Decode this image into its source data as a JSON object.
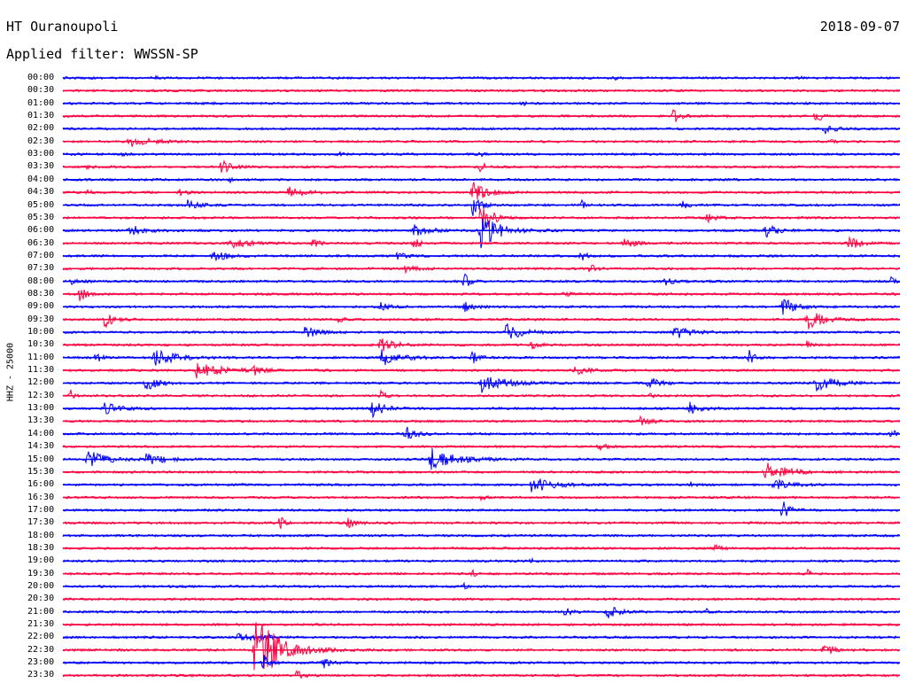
{
  "header": {
    "station": "HT Ouranoupoli",
    "date": "2018-09-07",
    "filter": "Applied filter: WWSSN-SP"
  },
  "chart_data": {
    "type": "line",
    "title": "HT Ouranoupoli",
    "ylabel": "HHZ - 25000",
    "row_labels": [
      "00:00",
      "00:30",
      "01:00",
      "01:30",
      "02:00",
      "02:30",
      "03:00",
      "03:30",
      "04:00",
      "04:30",
      "05:00",
      "05:30",
      "06:00",
      "06:30",
      "07:00",
      "07:30",
      "08:00",
      "08:30",
      "09:00",
      "09:30",
      "10:00",
      "10:30",
      "11:00",
      "11:30",
      "12:00",
      "12:30",
      "13:00",
      "13:30",
      "14:00",
      "14:30",
      "15:00",
      "15:30",
      "16:00",
      "16:30",
      "17:00",
      "17:30",
      "18:00",
      "18:30",
      "19:00",
      "19:30",
      "20:00",
      "20:30",
      "21:00",
      "21:30",
      "22:00",
      "22:30",
      "23:00",
      "23:30"
    ],
    "trace_colors": [
      "#0000ff",
      "#ff0040"
    ],
    "grid": false,
    "events": [
      [
        0,
        0.11,
        3,
        2
      ],
      [
        0,
        0.66,
        2,
        1.6
      ],
      [
        0,
        0.88,
        2,
        1.6
      ],
      [
        1,
        0.57,
        3,
        1
      ],
      [
        2,
        0.55,
        4,
        2
      ],
      [
        3,
        0.73,
        6,
        8
      ],
      [
        3,
        0.9,
        5,
        9
      ],
      [
        4,
        0.91,
        10,
        5
      ],
      [
        5,
        0.08,
        20,
        6
      ],
      [
        5,
        0.92,
        3,
        2
      ],
      [
        6,
        0.07,
        4,
        2
      ],
      [
        6,
        0.33,
        3,
        3
      ],
      [
        6,
        0.5,
        2,
        4
      ],
      [
        7,
        0.03,
        3,
        3
      ],
      [
        7,
        0.19,
        10,
        7
      ],
      [
        7,
        0.5,
        3,
        12
      ],
      [
        8,
        0.2,
        3,
        2
      ],
      [
        9,
        0.03,
        4,
        2
      ],
      [
        9,
        0.14,
        6,
        4
      ],
      [
        9,
        0.27,
        15,
        6
      ],
      [
        9,
        0.49,
        14,
        12
      ],
      [
        10,
        0.15,
        10,
        6
      ],
      [
        10,
        0.49,
        8,
        12
      ],
      [
        10,
        0.62,
        3,
        5
      ],
      [
        10,
        0.74,
        5,
        5
      ],
      [
        11,
        0.5,
        10,
        20
      ],
      [
        11,
        0.77,
        8,
        6
      ],
      [
        12,
        0.08,
        15,
        6
      ],
      [
        12,
        0.42,
        15,
        6
      ],
      [
        12,
        0.5,
        18,
        20
      ],
      [
        12,
        0.84,
        12,
        7
      ],
      [
        13,
        0.2,
        20,
        5
      ],
      [
        13,
        0.3,
        4,
        9
      ],
      [
        13,
        0.42,
        5,
        9
      ],
      [
        13,
        0.67,
        12,
        5
      ],
      [
        13,
        0.94,
        10,
        8
      ],
      [
        14,
        0.18,
        15,
        6
      ],
      [
        14,
        0.4,
        10,
        4
      ],
      [
        14,
        0.62,
        6,
        5
      ],
      [
        15,
        0.41,
        10,
        4
      ],
      [
        15,
        0.63,
        8,
        4
      ],
      [
        16,
        0.01,
        10,
        4
      ],
      [
        16,
        0.48,
        5,
        10
      ],
      [
        16,
        0.72,
        10,
        4
      ],
      [
        16,
        0.99,
        3,
        6
      ],
      [
        17,
        0.02,
        6,
        10
      ],
      [
        17,
        0.6,
        5,
        3
      ],
      [
        18,
        0.38,
        8,
        5
      ],
      [
        18,
        0.48,
        10,
        5
      ],
      [
        18,
        0.86,
        12,
        10
      ],
      [
        19,
        0.05,
        8,
        10
      ],
      [
        19,
        0.33,
        4,
        5
      ],
      [
        19,
        0.89,
        15,
        12
      ],
      [
        20,
        0.29,
        12,
        7
      ],
      [
        20,
        0.53,
        15,
        10
      ],
      [
        20,
        0.73,
        15,
        8
      ],
      [
        21,
        0.38,
        12,
        10
      ],
      [
        21,
        0.56,
        8,
        4
      ],
      [
        21,
        0.89,
        3,
        8
      ],
      [
        22,
        0.04,
        5,
        6
      ],
      [
        22,
        0.11,
        20,
        10
      ],
      [
        22,
        0.38,
        18,
        10
      ],
      [
        22,
        0.49,
        6,
        8
      ],
      [
        22,
        0.82,
        5,
        8
      ],
      [
        23,
        0.16,
        30,
        8
      ],
      [
        23,
        0.23,
        6,
        9
      ],
      [
        23,
        0.61,
        15,
        5
      ],
      [
        24,
        0.1,
        12,
        8
      ],
      [
        24,
        0.5,
        25,
        10
      ],
      [
        24,
        0.7,
        10,
        8
      ],
      [
        24,
        0.9,
        20,
        9
      ],
      [
        25,
        0.01,
        4,
        6
      ],
      [
        25,
        0.38,
        5,
        5
      ],
      [
        25,
        0.7,
        3,
        5
      ],
      [
        26,
        0.05,
        18,
        6
      ],
      [
        26,
        0.37,
        12,
        10
      ],
      [
        26,
        0.75,
        10,
        7
      ],
      [
        27,
        0.69,
        10,
        5
      ],
      [
        28,
        0.41,
        8,
        9
      ],
      [
        28,
        0.99,
        4,
        6
      ],
      [
        29,
        0.64,
        6,
        6
      ],
      [
        30,
        0.03,
        18,
        10
      ],
      [
        30,
        0.1,
        18,
        6
      ],
      [
        30,
        0.44,
        25,
        12
      ],
      [
        31,
        0.84,
        20,
        12
      ],
      [
        32,
        0.56,
        20,
        9
      ],
      [
        32,
        0.75,
        5,
        4
      ],
      [
        32,
        0.85,
        15,
        6
      ],
      [
        33,
        0.5,
        4,
        3
      ],
      [
        34,
        0.86,
        8,
        10
      ],
      [
        35,
        0.26,
        4,
        8
      ],
      [
        35,
        0.34,
        8,
        6
      ],
      [
        37,
        0.78,
        6,
        3
      ],
      [
        38,
        0.56,
        3,
        2
      ],
      [
        39,
        0.49,
        4,
        5
      ],
      [
        39,
        0.89,
        3,
        4
      ],
      [
        40,
        0.48,
        3,
        3
      ],
      [
        42,
        0.6,
        6,
        5
      ],
      [
        42,
        0.65,
        10,
        10
      ],
      [
        42,
        0.77,
        3,
        3
      ],
      [
        44,
        0.21,
        12,
        7
      ],
      [
        44,
        0.24,
        6,
        5
      ],
      [
        45,
        0.23,
        25,
        40
      ],
      [
        45,
        0.91,
        8,
        8
      ],
      [
        46,
        0.24,
        6,
        8
      ],
      [
        46,
        0.31,
        6,
        10
      ],
      [
        47,
        0.28,
        5,
        10
      ]
    ]
  }
}
